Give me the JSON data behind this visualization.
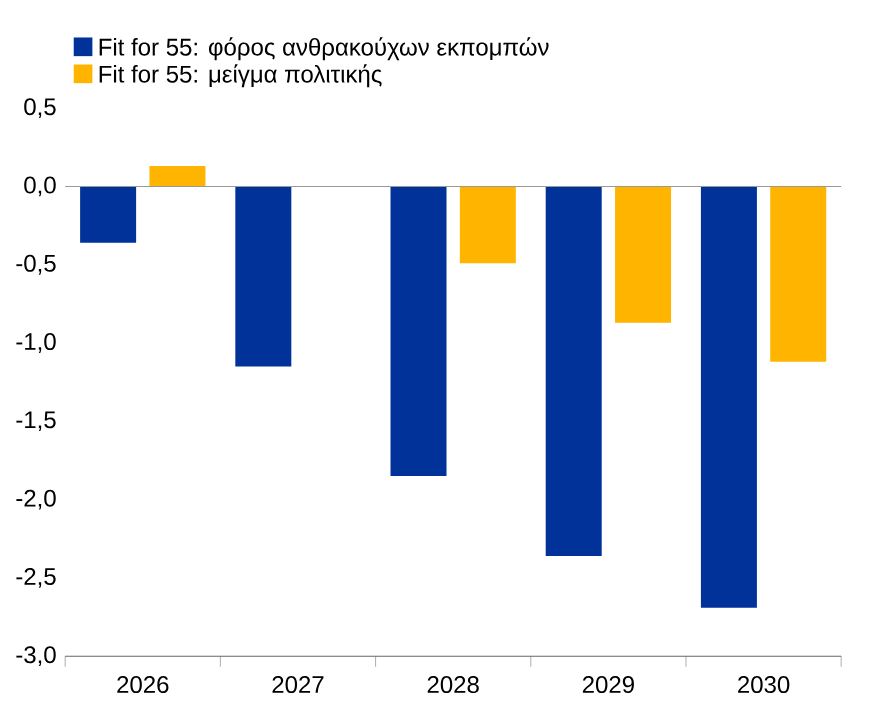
{
  "chart_data": {
    "type": "bar",
    "categories": [
      "2026",
      "2027",
      "2028",
      "2029",
      "2030"
    ],
    "series": [
      {
        "name": "Fit for 55: φόρος ανθρακούχων εκπομπών",
        "color": "#003299",
        "values": [
          -0.36,
          -1.15,
          -1.85,
          -2.36,
          -2.69
        ]
      },
      {
        "name": "Fit for 55: μείγμα πολιτικής",
        "color": "#ffb400",
        "values": [
          0.13,
          null,
          -0.49,
          -0.87,
          -1.12
        ]
      }
    ],
    "ylim": [
      -3.0,
      0.5
    ],
    "yticks": [
      {
        "value": -3.0,
        "label": "-3,0"
      },
      {
        "value": -2.5,
        "label": "-2,5"
      },
      {
        "value": -2.0,
        "label": "-2,0"
      },
      {
        "value": -1.5,
        "label": "-1,5"
      },
      {
        "value": -1.0,
        "label": "-1,0"
      },
      {
        "value": -0.5,
        "label": "-0,5"
      },
      {
        "value": 0.0,
        "label": "0,0"
      },
      {
        "value": 0.5,
        "label": "0,5"
      }
    ],
    "ref_lines": [
      {
        "axis": "y",
        "value": 0,
        "color": "#999999"
      }
    ],
    "legend": "top left"
  }
}
